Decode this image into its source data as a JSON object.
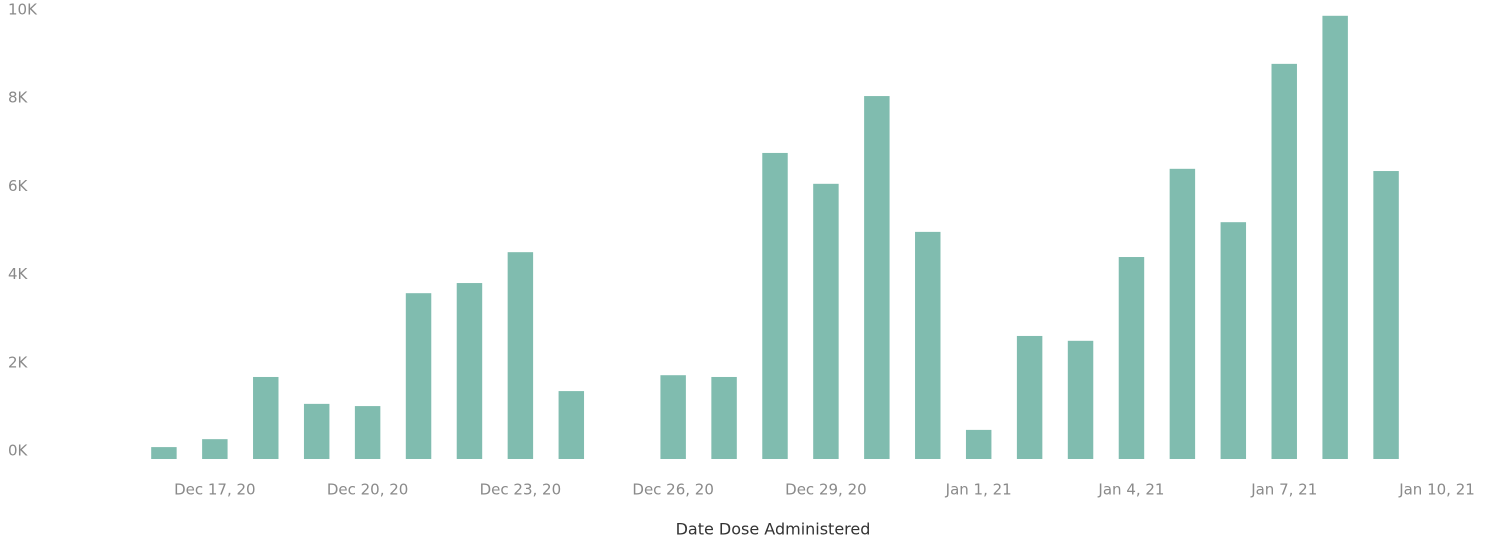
{
  "chart_data": {
    "type": "bar",
    "x_label": "Date Dose Administered",
    "x": [
      "2020-12-16",
      "2020-12-17",
      "2020-12-18",
      "2020-12-19",
      "2020-12-20",
      "2020-12-21",
      "2020-12-22",
      "2020-12-23",
      "2020-12-24",
      "2020-12-26",
      "2020-12-27",
      "2020-12-28",
      "2020-12-29",
      "2020-12-30",
      "2020-12-31",
      "2021-01-01",
      "2021-01-02",
      "2021-01-03",
      "2021-01-04",
      "2021-01-05",
      "2021-01-06",
      "2021-01-07",
      "2021-01-08",
      "2021-01-09"
    ],
    "values": [
      270,
      450,
      1860,
      1250,
      1200,
      3760,
      3990,
      4690,
      1540,
      1900,
      1860,
      6940,
      6240,
      8230,
      5150,
      660,
      2790,
      2680,
      4580,
      6580,
      5370,
      8960,
      10050,
      6530
    ],
    "color": "#80bcaf",
    "xlim": [
      "2020-12-15",
      "2021-01-10"
    ],
    "xticks": [
      {
        "value": "2020-12-17",
        "label": "Dec 17, 20"
      },
      {
        "value": "2020-12-20",
        "label": "Dec 20, 20"
      },
      {
        "value": "2020-12-23",
        "label": "Dec 23, 20"
      },
      {
        "value": "2020-12-26",
        "label": "Dec 26, 20"
      },
      {
        "value": "2020-12-29",
        "label": "Dec 29, 20"
      },
      {
        "value": "2021-01-01",
        "label": "Jan 1, 21"
      },
      {
        "value": "2021-01-04",
        "label": "Jan 4, 21"
      },
      {
        "value": "2021-01-07",
        "label": "Jan 7, 21"
      },
      {
        "value": "2021-01-10",
        "label": "Jan 10, 21"
      }
    ],
    "ylim": [
      0,
      10000
    ],
    "yticks": [
      {
        "value": 0,
        "label": "0K"
      },
      {
        "value": 2000,
        "label": "2K"
      },
      {
        "value": 4000,
        "label": "4K"
      },
      {
        "value": 6000,
        "label": "6K"
      },
      {
        "value": 8000,
        "label": "8K"
      },
      {
        "value": 10000,
        "label": "10K"
      }
    ]
  }
}
